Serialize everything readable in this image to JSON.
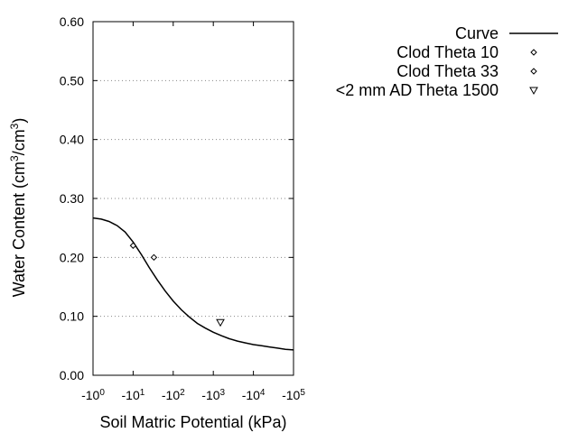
{
  "chart_data": {
    "type": "scatter",
    "title": "",
    "xlabel": "Soil Matric Potential (kPa)",
    "ylabel": "Water Content (cm3/cm3)",
    "ylabel_parts": [
      "Water Content (cm",
      "3",
      "/cm",
      "3",
      ")"
    ],
    "x_scale": "log",
    "x_sign": "negative",
    "xlim": [
      1,
      100000
    ],
    "ylim": [
      0,
      0.6
    ],
    "grid": "horizontal dotted",
    "legend_position": "top-right, outside plot",
    "x_ticks": [
      {
        "base": "-10",
        "exp": "0"
      },
      {
        "base": "-10",
        "exp": "1"
      },
      {
        "base": "-10",
        "exp": "2"
      },
      {
        "base": "-10",
        "exp": "3"
      },
      {
        "base": "-10",
        "exp": "4"
      },
      {
        "base": "-10",
        "exp": "5"
      }
    ],
    "y_ticks": [
      "0.00",
      "0.10",
      "0.20",
      "0.30",
      "0.40",
      "0.50",
      "0.60"
    ],
    "series": [
      {
        "name": "Curve",
        "kind": "line",
        "color": "#000000",
        "x": [
          1,
          1.6,
          2.5,
          4,
          6.3,
          10,
          16,
          25,
          40,
          63,
          100,
          160,
          250,
          400,
          630,
          1000,
          1600,
          2500,
          4000,
          6300,
          10000,
          16000,
          25000,
          40000,
          63000,
          100000
        ],
        "y": [
          0.267,
          0.265,
          0.261,
          0.254,
          0.243,
          0.226,
          0.205,
          0.183,
          0.162,
          0.143,
          0.126,
          0.111,
          0.099,
          0.088,
          0.08,
          0.073,
          0.067,
          0.062,
          0.058,
          0.055,
          0.052,
          0.05,
          0.048,
          0.046,
          0.044,
          0.043
        ]
      },
      {
        "name": "Clod Theta 10",
        "kind": "point",
        "marker": "diamond",
        "x": [
          10
        ],
        "y": [
          0.22
        ]
      },
      {
        "name": "Clod Theta 33",
        "kind": "point",
        "marker": "diamond",
        "x": [
          33
        ],
        "y": [
          0.2
        ]
      },
      {
        "name": "<2 mm AD Theta 1500",
        "kind": "point",
        "marker": "triangle-down",
        "x": [
          1500
        ],
        "y": [
          0.09
        ]
      }
    ]
  }
}
